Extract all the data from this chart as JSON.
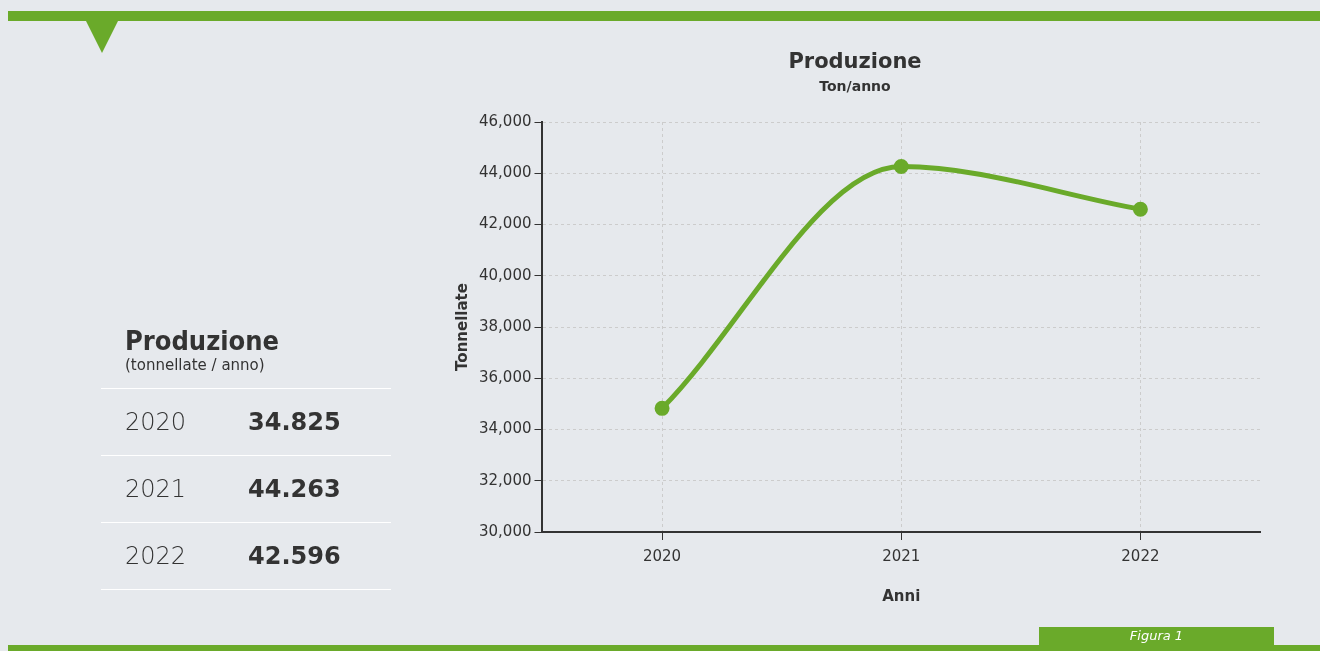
{
  "chart_data": {
    "type": "line",
    "title": "Produzione",
    "subtitle": "Ton/anno",
    "xlabel": "Anni",
    "ylabel": "Tonnellate",
    "categories": [
      "2020",
      "2021",
      "2022"
    ],
    "series": [
      {
        "color": "#6aaa2a",
        "values": [
          34825,
          44263,
          42596
        ]
      }
    ],
    "ylim": [
      30000,
      46000
    ],
    "yticks": [
      {
        "value": 30000,
        "label": "30,000"
      },
      {
        "value": 32000,
        "label": "32,000"
      },
      {
        "value": 34000,
        "label": "34,000"
      },
      {
        "value": 36000,
        "label": "36,000"
      },
      {
        "value": 38000,
        "label": "38,000"
      },
      {
        "value": 40000,
        "label": "40,000"
      },
      {
        "value": 42000,
        "label": "42,000"
      },
      {
        "value": 44000,
        "label": "44,000"
      },
      {
        "value": 46000,
        "label": "46,000"
      }
    ],
    "grid": true,
    "legend": false,
    "marker": "circle",
    "line_style": "solid",
    "annotations": [
      "Produzione",
      "(tonnellate / anno)",
      "Figura 1",
      "2020",
      "34.825",
      "2021",
      "44.263",
      "2022",
      "42.596"
    ]
  }
}
